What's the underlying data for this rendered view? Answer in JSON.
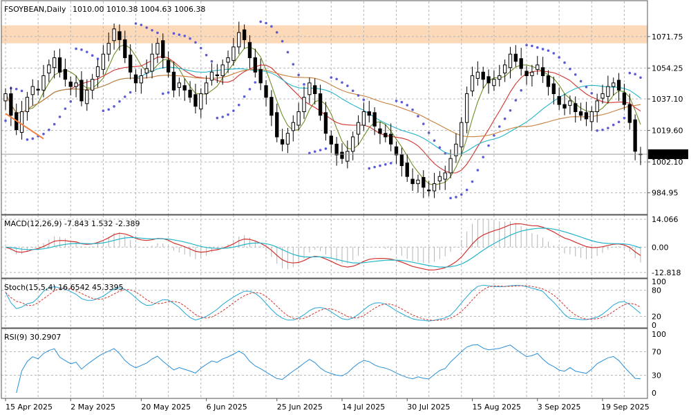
{
  "chart_data": {
    "type": "candlestick",
    "symbol_header": "FSOYBEAN,Daily",
    "ohlc_header": "1010.00 1010.38 1004.63 1006.38",
    "last_price_label": "1006.38",
    "last_price": 1006.38,
    "price_axis": {
      "ticks": [
        984.95,
        1002.1,
        1019.6,
        1037.1,
        1054.25,
        1071.75
      ],
      "tick_labels": [
        "984.95",
        "1002.10",
        "1019.60",
        "1037.10",
        "1054.25",
        "1071.75"
      ],
      "range": [
        976,
        1089
      ]
    },
    "resistance_zone": [
      1068,
      1078
    ],
    "zone_color": "#fcd9b8",
    "x_labels": [
      "15 Apr 2025",
      "2 May 2025",
      "20 May 2025",
      "6 Jun 2025",
      "25 Jun 2025",
      "14 Jul 2025",
      "30 Jul 2025",
      "15 Aug 2025",
      "3 Sep 2025",
      "19 Sep 2025"
    ],
    "x_label_bars": [
      0,
      12,
      25,
      37,
      50,
      62,
      74,
      86,
      98,
      110
    ],
    "closes": [
      1040,
      1028,
      1020,
      1030,
      1038,
      1044,
      1042,
      1050,
      1056,
      1060,
      1052,
      1048,
      1044,
      1046,
      1036,
      1042,
      1048,
      1055,
      1062,
      1068,
      1076,
      1070,
      1060,
      1052,
      1046,
      1050,
      1054,
      1062,
      1068,
      1060,
      1052,
      1042,
      1046,
      1042,
      1038,
      1033,
      1040,
      1046,
      1052,
      1050,
      1056,
      1060,
      1066,
      1074,
      1070,
      1060,
      1052,
      1046,
      1038,
      1028,
      1016,
      1012,
      1018,
      1024,
      1030,
      1038,
      1046,
      1040,
      1028,
      1018,
      1012,
      1006,
      1004,
      1008,
      1016,
      1024,
      1030,
      1028,
      1022,
      1018,
      1016,
      1012,
      1006,
      1000,
      994,
      990,
      992,
      988,
      986,
      990,
      994,
      996,
      1004,
      1012,
      1024,
      1040,
      1050,
      1052,
      1048,
      1046,
      1048,
      1050,
      1056,
      1062,
      1058,
      1054,
      1050,
      1052,
      1056,
      1050,
      1044,
      1040,
      1034,
      1032,
      1036,
      1030,
      1028,
      1026,
      1030,
      1036,
      1040,
      1044,
      1046,
      1042,
      1034,
      1024,
      1008,
      1006.38
    ],
    "sma_fast_color": "#6b8e23",
    "sma_mid_color": "#d0312d",
    "sma_slow_color": "#22b5c9",
    "sma_long_color": "#c87f3c",
    "sar_color": "#5b5bd6",
    "trend_line_color": "#f08040",
    "macd": {
      "label": "MACD(12,26,9) -7.843 1.532 -2.389",
      "ticks": [
        14.066,
        0.0,
        -12.818
      ],
      "tick_labels": [
        "14.066",
        "0.00",
        "-12.818"
      ],
      "line_color": "#d0312d",
      "signal_color": "#22b5c9",
      "hist_color": "#b4b4b4"
    },
    "stoch": {
      "label": "Stoch(15,5,4) 16.6542 45.3395",
      "ticks": [
        100,
        80,
        20,
        0
      ],
      "tick_labels": [
        "100",
        "80",
        "20",
        "0"
      ],
      "k_color": "#22a7d8",
      "d_color": "#d0312d"
    },
    "rsi": {
      "label": "RSI(9) 30.2907",
      "ticks": [
        100,
        70,
        30,
        0
      ],
      "tick_labels": [
        "100",
        "70",
        "30",
        "0"
      ],
      "line_color": "#2a8fd6"
    }
  }
}
